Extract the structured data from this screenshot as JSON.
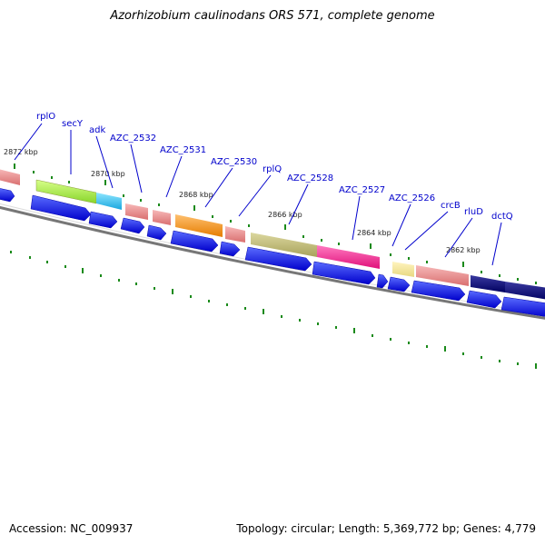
{
  "title": "Azorhizobium caulinodans ORS 571, complete genome",
  "footer": {
    "accession": "Accession: NC_009937",
    "summary": "Topology: circular; Length: 5,369,772 bp; Genes: 4,779"
  },
  "kbp_labels": [
    "2872 kbp",
    "2870 kbp",
    "2868 kbp",
    "2866 kbp",
    "2864 kbp",
    "2862 kbp"
  ],
  "gene_labels": [
    "rplO",
    "secY",
    "adk",
    "AZC_2532",
    "AZC_2531",
    "AZC_2530",
    "rplQ",
    "AZC_2528",
    "AZC_2527",
    "AZC_2526",
    "crcB",
    "rluD",
    "dctQ"
  ],
  "colors": {
    "gene_arrow": "#0000ee",
    "label": "#0000cc",
    "tick": "#1a8a1a",
    "backbone": "#777777"
  }
}
